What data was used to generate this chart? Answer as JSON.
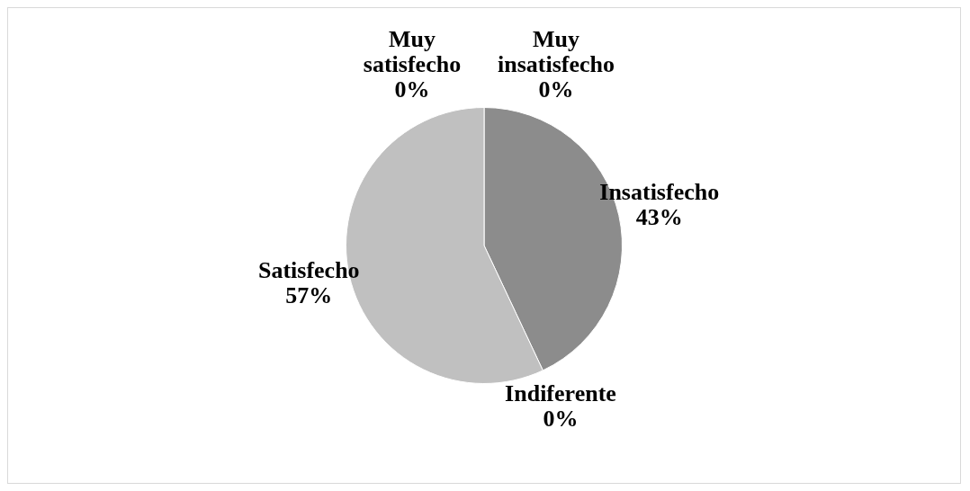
{
  "chart_data": {
    "type": "pie",
    "categories": [
      "Muy insatisfecho",
      "Insatisfecho",
      "Indiferente",
      "Satisfecho",
      "Muy satisfecho"
    ],
    "values": [
      0,
      43,
      0,
      57,
      0
    ],
    "colors": [
      "#6e6e6e",
      "#8c8c8c",
      "#4a4a4a",
      "#c0c0c0",
      "#d9d9d9"
    ],
    "value_labels": [
      "0%",
      "43%",
      "0%",
      "57%",
      "0%"
    ],
    "legend": false
  }
}
